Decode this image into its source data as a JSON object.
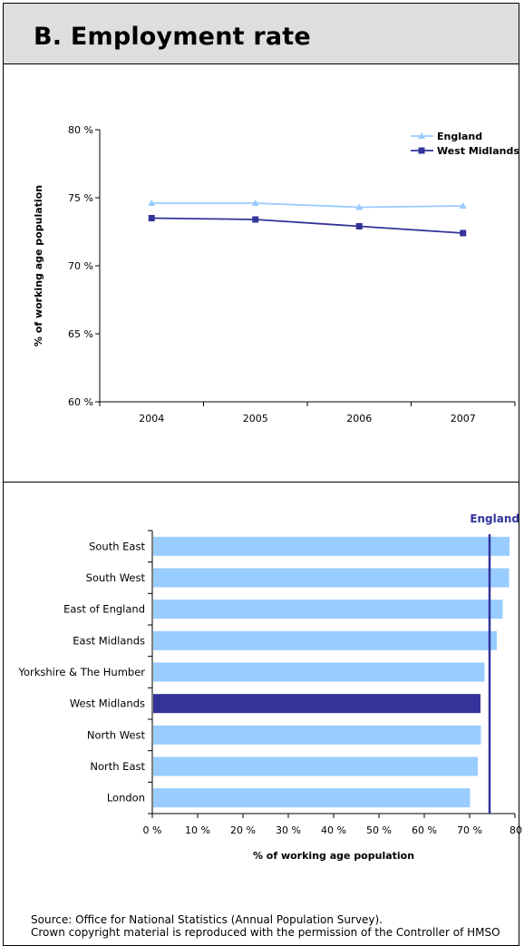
{
  "header": {
    "title": "B. Employment rate"
  },
  "footer": {
    "source": "Source: Office for National Statistics (Annual Population Survey).",
    "copyright": "Crown copyright material is reproduced with the permission of the Controller of HMSO"
  },
  "chart_data": [
    {
      "type": "line",
      "x": [
        "2004",
        "2005",
        "2006",
        "2007"
      ],
      "ylabel": "% of working age population",
      "ylim": [
        60,
        80
      ],
      "yticks": [
        "80 %",
        "75 %",
        "70 %",
        "65 %",
        "60 %"
      ],
      "legend": "top-right",
      "series": [
        {
          "name": "England",
          "values": [
            74.6,
            74.6,
            74.3,
            74.4
          ],
          "color": "#99ccff",
          "marker": "triangle"
        },
        {
          "name": "West Midlands",
          "values": [
            73.5,
            73.4,
            72.9,
            72.4
          ],
          "color": "#333399",
          "marker": "square"
        }
      ]
    },
    {
      "type": "bar",
      "orientation": "horizontal",
      "categories": [
        "South East",
        "South West",
        "East of England",
        "East Midlands",
        "Yorkshire & The Humber",
        "West Midlands",
        "North West",
        "North East",
        "London"
      ],
      "values": [
        78.8,
        78.7,
        77.3,
        76.0,
        73.3,
        72.4,
        72.5,
        71.8,
        70.1
      ],
      "highlight": "West Midlands",
      "bar_color": "#99ccff",
      "highlight_color": "#333399",
      "xlabel": "% of working age population",
      "xlim": [
        0,
        80
      ],
      "xticks": [
        "0 %",
        "10 %",
        "20 %",
        "30 %",
        "40 %",
        "50 %",
        "60 %",
        "70 %",
        "80"
      ],
      "reference_line": {
        "label": "England",
        "value": 74.4,
        "color": "#333399"
      }
    }
  ]
}
